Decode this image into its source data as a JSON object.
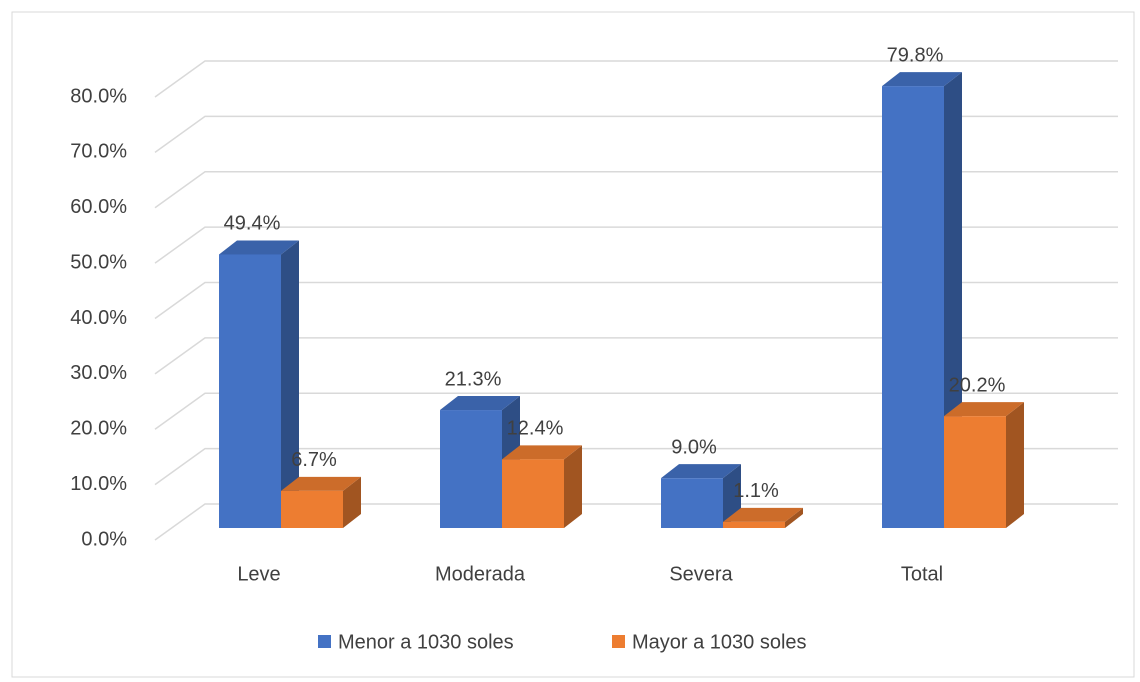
{
  "chart_data": {
    "type": "bar3d",
    "categories": [
      "Leve",
      "Moderada",
      "Severa",
      "Total"
    ],
    "series": [
      {
        "name": "Menor a 1030 soles",
        "color": "#4472c4",
        "values": [
          49.4,
          21.3,
          9.0,
          79.8
        ],
        "value_labels": [
          "49.4%",
          "21.3%",
          "9.0%",
          "79.8%"
        ]
      },
      {
        "name": "Mayor a 1030 soles",
        "color": "#ed7d31",
        "values": [
          6.7,
          12.4,
          1.1,
          20.2
        ],
        "value_labels": [
          "6.7%",
          "12.4%",
          "1.1%",
          "20.2%"
        ]
      }
    ],
    "ylim": [
      0,
      80
    ],
    "yticks": [
      {
        "value": 0,
        "label": "0.0%"
      },
      {
        "value": 10,
        "label": "10.0%"
      },
      {
        "value": 20,
        "label": "20.0%"
      },
      {
        "value": 30,
        "label": "30.0%"
      },
      {
        "value": 40,
        "label": "40.0%"
      },
      {
        "value": 50,
        "label": "50.0%"
      },
      {
        "value": 60,
        "label": "60.0%"
      },
      {
        "value": 70,
        "label": "70.0%"
      },
      {
        "value": 80,
        "label": "80.0%"
      }
    ],
    "grid": true,
    "legend": "bottom"
  }
}
